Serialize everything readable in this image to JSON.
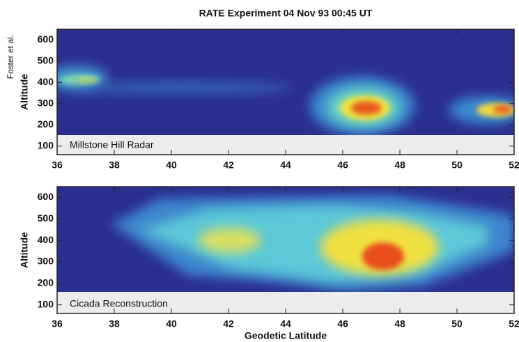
{
  "title": "RATE Experiment    04 Nov 93  00:45 UT",
  "author": "Foster et al.",
  "chart_data": [
    {
      "type": "heatmap",
      "ylabel": "Altitude",
      "panel_label": "Millstone Hill Radar",
      "xlim": [
        36,
        52
      ],
      "xticks": [
        36,
        38,
        40,
        42,
        44,
        46,
        48,
        50,
        52
      ],
      "ylim": [
        60,
        650
      ],
      "yticks": [
        100,
        200,
        300,
        400,
        500,
        600
      ]
    },
    {
      "type": "heatmap",
      "ylabel": "Altitude",
      "panel_label": "Cicada Reconstruction",
      "xlabel": "Geodetic Latitude",
      "xlim": [
        36,
        52
      ],
      "xticks": [
        36,
        38,
        40,
        42,
        44,
        46,
        48,
        50,
        52
      ],
      "ylim": [
        60,
        650
      ],
      "yticks": [
        100,
        200,
        300,
        400,
        500,
        600
      ]
    }
  ]
}
